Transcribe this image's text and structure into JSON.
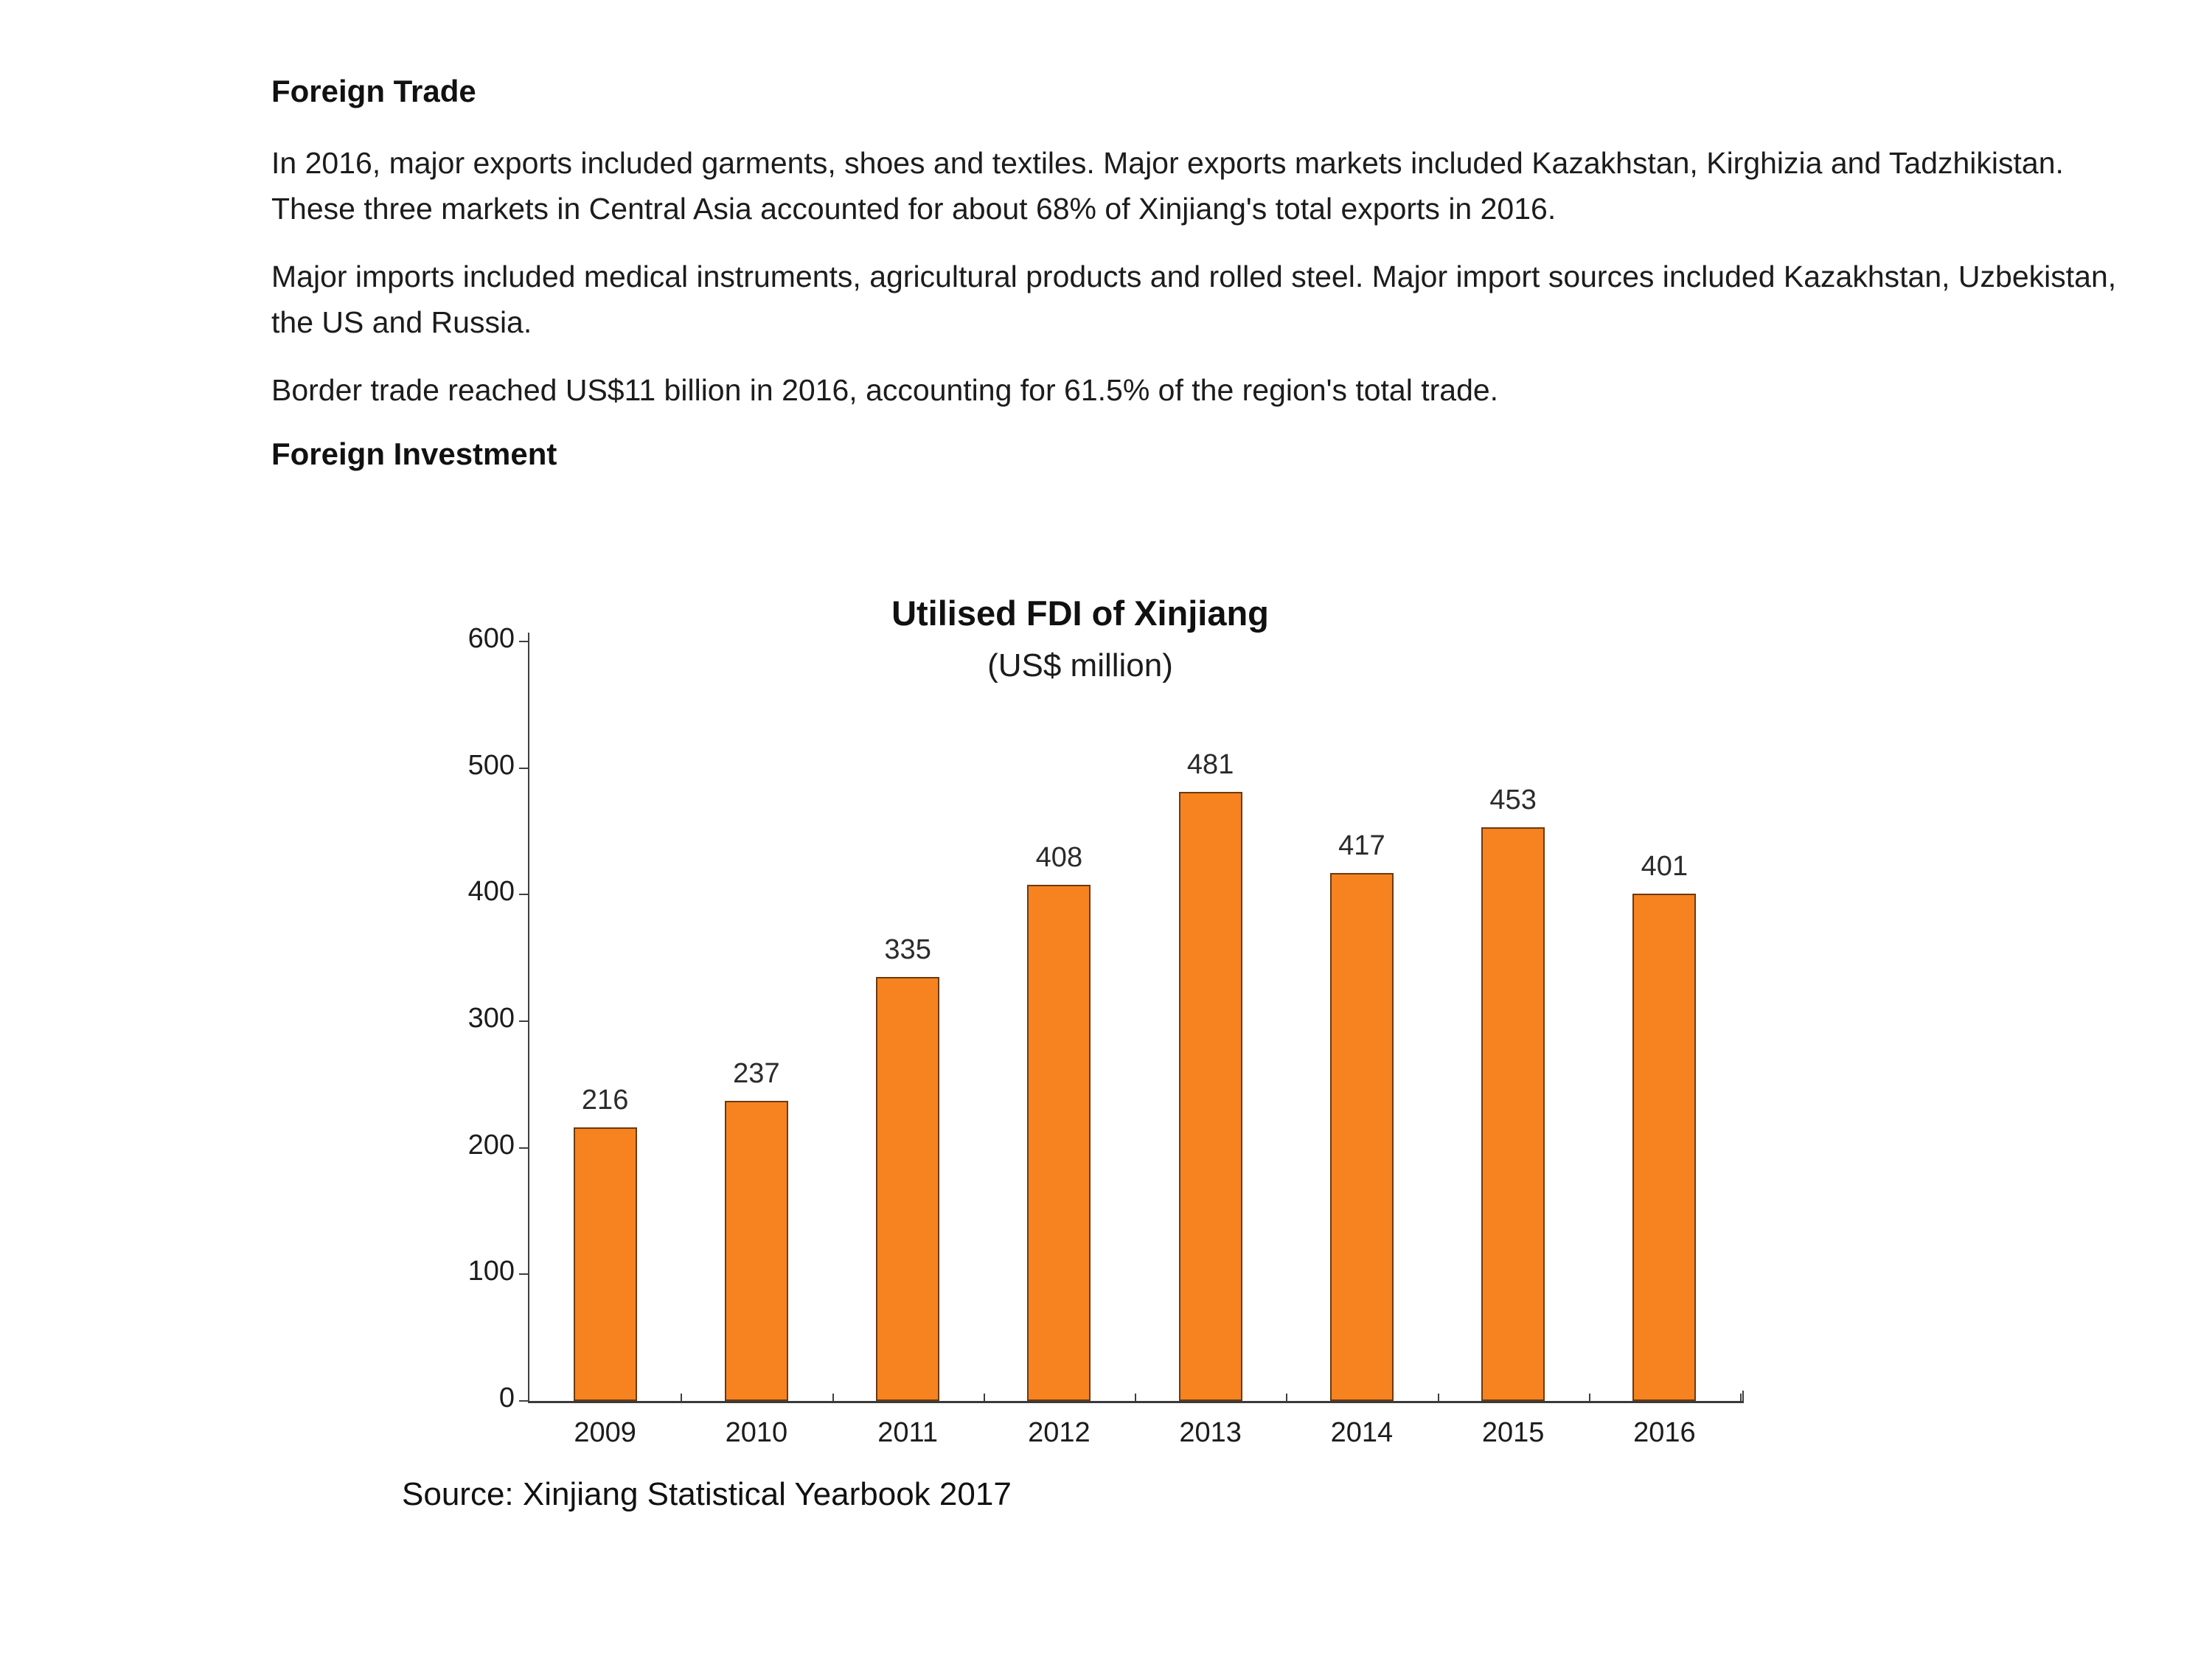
{
  "document": {
    "heading_trade": "Foreign Trade",
    "paragraphs": [
      {
        "lines": [
          "In 2016, major exports included garments, shoes and textiles. Major exports markets included Kazakhstan, Kirghizia and Tadzhikistan.",
          "These three markets in Central Asia accounted for about 68% of Xinjiang's total exports in 2016."
        ]
      },
      {
        "lines": [
          "Major imports included medical instruments, agricultural products and rolled steel. Major import sources included Kazakhstan, Uzbekistan,",
          "the US and Russia."
        ]
      },
      {
        "lines": [
          "Border trade reached US$11 billion in 2016, accounting for 61.5% of the region's total trade."
        ]
      }
    ],
    "heading_investment": "Foreign Investment"
  },
  "chart_data": {
    "type": "bar",
    "title": "Utilised FDI of Xinjiang",
    "subtitle": "(US$ million)",
    "categories": [
      "2009",
      "2010",
      "2011",
      "2012",
      "2013",
      "2014",
      "2015",
      "2016"
    ],
    "values": [
      216,
      237,
      335,
      408,
      481,
      417,
      453,
      401
    ],
    "xlabel": "",
    "ylabel": "",
    "ylim": [
      0,
      600
    ],
    "ytick_step": 100,
    "grid": false,
    "legend": "none",
    "bar_color": "#F6831F",
    "bar_border_color": "#6B3A10",
    "source": "Source: Xinjiang Statistical Yearbook 2017"
  }
}
